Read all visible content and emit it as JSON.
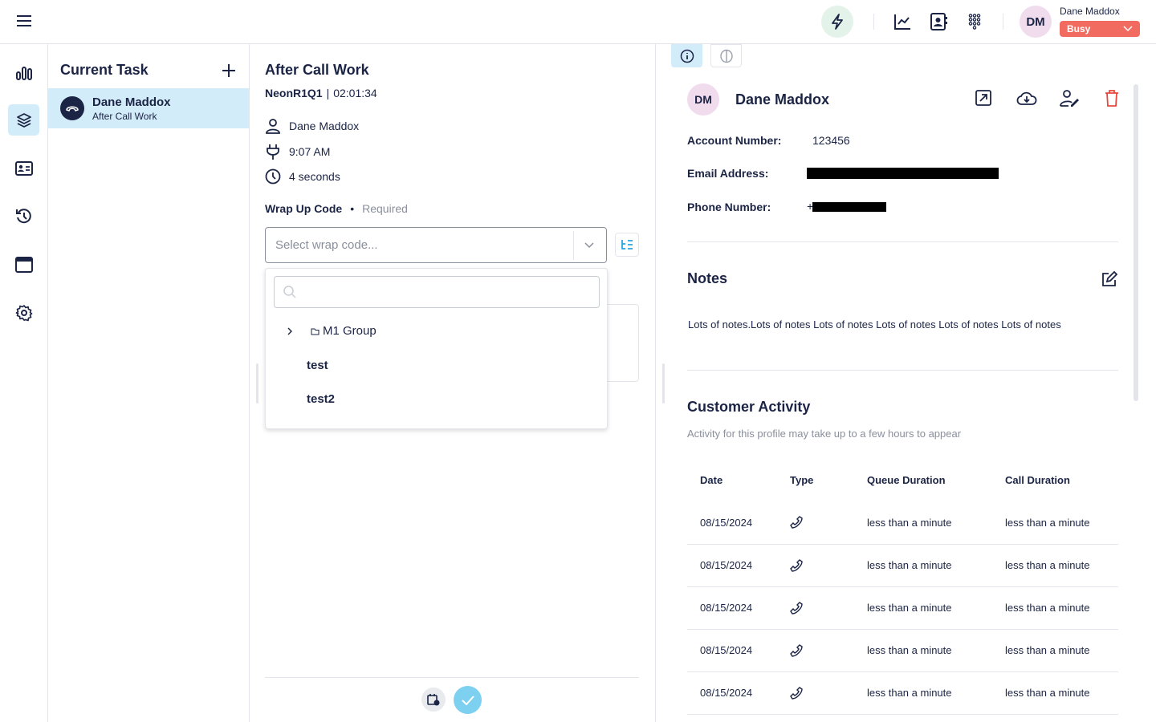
{
  "topbar": {
    "user_name": "Dane Maddox",
    "initials": "DM",
    "status": "Busy",
    "status_color": "#f26b60",
    "icons": [
      "menu-icon",
      "lightning-icon",
      "chart-line-icon",
      "contact-book-icon",
      "dialpad-icon"
    ]
  },
  "rail": {
    "items": [
      "stats-icon",
      "layers-icon",
      "id-card-icon",
      "history-icon",
      "window-icon",
      "settings-icon"
    ],
    "active": "layers-icon"
  },
  "tasks": {
    "title": "Current Task",
    "items": [
      {
        "name": "Dane Maddox",
        "status": "After Call Work"
      }
    ]
  },
  "work": {
    "title": "After Call Work",
    "queue": "NeonR1Q1",
    "separator": "|",
    "timer": "02:01:34",
    "contact": "Dane Maddox",
    "time": "9:07 AM",
    "duration": "4 seconds",
    "wrap_label": "Wrap Up Code",
    "required": "Required",
    "wrap_placeholder": "Select wrap code...",
    "options": [
      {
        "label": "M1 Group",
        "group": true
      },
      {
        "label": "test"
      },
      {
        "label": "test2"
      }
    ]
  },
  "profile": {
    "initials": "DM",
    "name": "Dane Maddox",
    "account_label": "Account Number:",
    "account_value": "123456",
    "email_label": "Email Address:",
    "phone_label": "Phone Number:",
    "phone_prefix": "+"
  },
  "notes": {
    "title": "Notes",
    "text": "Lots of notes.Lots of notes Lots of notes Lots of notes Lots of notes Lots of notes"
  },
  "activity": {
    "title": "Customer Activity",
    "subtitle": "Activity for this profile may take up to a few hours to appear",
    "columns": [
      "Date",
      "Type",
      "Queue Duration",
      "Call Duration"
    ],
    "rows": [
      {
        "date": "08/15/2024",
        "queue": "less than a minute",
        "call": "less than a minute"
      },
      {
        "date": "08/15/2024",
        "queue": "less than a minute",
        "call": "less than a minute"
      },
      {
        "date": "08/15/2024",
        "queue": "less than a minute",
        "call": "less than a minute"
      },
      {
        "date": "08/15/2024",
        "queue": "less than a minute",
        "call": "less than a minute"
      },
      {
        "date": "08/15/2024",
        "queue": "less than a minute",
        "call": "less than a minute"
      }
    ]
  }
}
